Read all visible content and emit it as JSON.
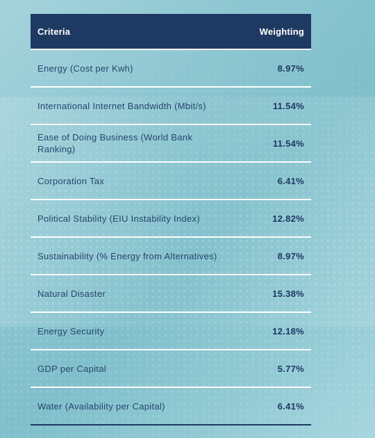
{
  "table": {
    "header": {
      "criteria": "Criteria",
      "weighting": "Weighting"
    },
    "rows": [
      {
        "criteria": "Energy (Cost per Kwh)",
        "weighting": "8.97%"
      },
      {
        "criteria": "International Internet Bandwidth (Mbit/s)",
        "weighting": "11.54%"
      },
      {
        "criteria": "Ease of Doing Business (World Bank Ranking)",
        "weighting": "11.54%"
      },
      {
        "criteria": "Corporation Tax",
        "weighting": "6.41%"
      },
      {
        "criteria": "Political Stability (EIU Instability Index)",
        "weighting": "12.82%"
      },
      {
        "criteria": "Sustainability (% Energy from Alternatives)",
        "weighting": "8.97%"
      },
      {
        "criteria": "Natural Disaster",
        "weighting": "15.38%"
      },
      {
        "criteria": "Energy Security",
        "weighting": "12.18%"
      },
      {
        "criteria": "GDP per Capital",
        "weighting": "5.77%"
      },
      {
        "criteria": "Water (Availability per Capital)",
        "weighting": "6.41%"
      }
    ]
  },
  "colors": {
    "header_bg": "#1f3a62",
    "text": "#27466e",
    "background": "#8ec7d2"
  }
}
